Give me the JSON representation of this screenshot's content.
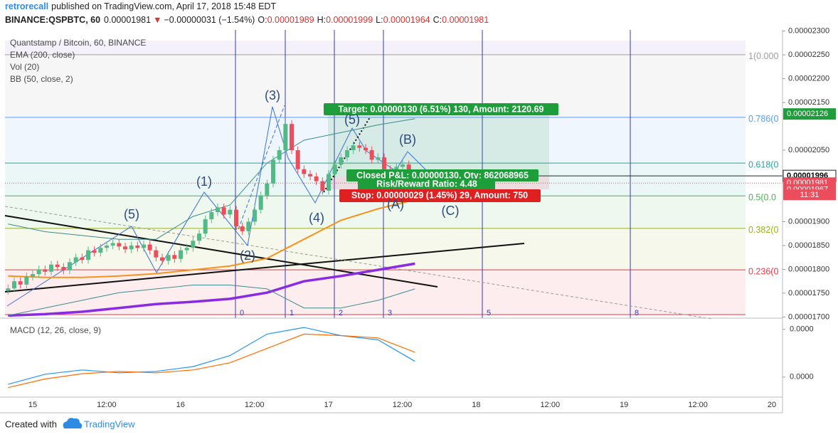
{
  "header": {
    "author": "retrorecall",
    "published": "published on TradingView.com, April 17, 2018 15:48 EDT",
    "symbol": "BINANCE:QSPBTC, 60",
    "last": "0.00001981",
    "arrow": "▼",
    "change": "−0.00000031 (−1.54%)",
    "o_label": "O:",
    "o": "0.00001989",
    "h_label": "H:",
    "h": "0.00001999",
    "l_label": "L:",
    "l": "0.00001964",
    "c_label": "C:",
    "c": "0.00001981"
  },
  "chart_data": [
    {
      "type": "candlestick",
      "title": "Quantstamp / Bitcoin, 60, BINANCE",
      "indicators": [
        "EMA (200, close)",
        "Vol (20)",
        "BB (50, close, 2)"
      ],
      "up_color": "#53b987",
      "down_color": "#eb4d5c",
      "open": [
        1.755e-05,
        1.76e-05,
        1.775e-05,
        1.768e-05,
        1.785e-05,
        1.79e-05,
        1.8e-05,
        1.795e-05,
        1.81e-05,
        1.805e-05,
        1.798e-05,
        1.815e-05,
        1.825e-05,
        1.82e-05,
        1.84e-05,
        1.835e-05,
        1.845e-05,
        1.85e-05,
        1.855e-05,
        1.848e-05,
        1.842e-05,
        1.85e-05,
        1.845e-05,
        1.852e-05,
        1.84e-05,
        1.825e-05,
        1.818e-05,
        1.83e-05,
        1.822e-05,
        1.84e-05,
        1.845e-05,
        1.86e-05,
        1.875e-05,
        1.905e-05,
        1.92e-05,
        1.93e-05,
        1.915e-05,
        1.925e-05,
        1.89e-05,
        1.88e-05,
        1.9e-05,
        1.925e-05,
        1.955e-05,
        1.98e-05,
        2.03e-05,
        2.05e-05,
        2.105e-05,
        2.05e-05,
        2.01e-05,
        2e-05,
        1.995e-05,
        1.985e-05,
        1.965e-05,
        2e-05,
        2.02e-05,
        2.035e-05,
        2.05e-05,
        2.06e-05,
        2.055e-05,
        2.05e-05,
        2.03e-05,
        2.035e-05,
        2.01e-05,
        2.005e-05,
        2.015e-05,
        2.02e-05,
        1.989e-05
      ],
      "high": [
        1.768e-05,
        1.783e-05,
        1.783e-05,
        1.793e-05,
        1.798e-05,
        1.808e-05,
        1.808e-05,
        1.818e-05,
        1.818e-05,
        1.813e-05,
        1.823e-05,
        1.833e-05,
        1.833e-05,
        1.848e-05,
        1.848e-05,
        1.853e-05,
        1.858e-05,
        1.863e-05,
        1.863e-05,
        1.856e-05,
        1.858e-05,
        1.858e-05,
        1.86e-05,
        1.86e-05,
        1.848e-05,
        1.833e-05,
        1.838e-05,
        1.838e-05,
        1.848e-05,
        1.853e-05,
        1.868e-05,
        1.883e-05,
        1.913e-05,
        1.928e-05,
        1.938e-05,
        1.938e-05,
        1.933e-05,
        1.933e-05,
        1.898e-05,
        1.908e-05,
        1.933e-05,
        1.963e-05,
        1.988e-05,
        2.038e-05,
        2.058e-05,
        2.12e-05,
        2.113e-05,
        2.058e-05,
        2.018e-05,
        2.008e-05,
        2.003e-05,
        1.993e-05,
        2.008e-05,
        2.028e-05,
        2.043e-05,
        2.058e-05,
        2.068e-05,
        2.068e-05,
        2.063e-05,
        2.058e-05,
        2.043e-05,
        2.043e-05,
        2.018e-05,
        2.023e-05,
        2.028e-05,
        2.028e-05,
        1.999e-05
      ],
      "low": [
        1.747e-05,
        1.752e-05,
        1.76e-05,
        1.76e-05,
        1.777e-05,
        1.782e-05,
        1.787e-05,
        1.787e-05,
        1.797e-05,
        1.79e-05,
        1.79e-05,
        1.807e-05,
        1.812e-05,
        1.812e-05,
        1.827e-05,
        1.827e-05,
        1.837e-05,
        1.842e-05,
        1.84e-05,
        1.834e-05,
        1.834e-05,
        1.837e-05,
        1.837e-05,
        1.832e-05,
        1.817e-05,
        1.81e-05,
        1.81e-05,
        1.814e-05,
        1.814e-05,
        1.832e-05,
        1.837e-05,
        1.852e-05,
        1.867e-05,
        1.897e-05,
        1.912e-05,
        1.907e-05,
        1.907e-05,
        1.882e-05,
        1.872e-05,
        1.872e-05,
        1.892e-05,
        1.917e-05,
        1.947e-05,
        1.972e-05,
        2.022e-05,
        2.042e-05,
        2.042e-05,
        2.002e-05,
        1.992e-05,
        1.987e-05,
        1.977e-05,
        1.957e-05,
        1.957e-05,
        1.992e-05,
        2.012e-05,
        2.027e-05,
        2.042e-05,
        2.047e-05,
        2.042e-05,
        2.022e-05,
        2.022e-05,
        2.002e-05,
        1.997e-05,
        1.997e-05,
        2.007e-05,
        1.981e-05,
        1.964e-05
      ],
      "close": [
        1.76e-05,
        1.775e-05,
        1.768e-05,
        1.785e-05,
        1.79e-05,
        1.8e-05,
        1.795e-05,
        1.81e-05,
        1.805e-05,
        1.798e-05,
        1.815e-05,
        1.825e-05,
        1.82e-05,
        1.84e-05,
        1.835e-05,
        1.845e-05,
        1.85e-05,
        1.855e-05,
        1.848e-05,
        1.842e-05,
        1.85e-05,
        1.845e-05,
        1.852e-05,
        1.84e-05,
        1.825e-05,
        1.818e-05,
        1.83e-05,
        1.822e-05,
        1.84e-05,
        1.845e-05,
        1.86e-05,
        1.875e-05,
        1.905e-05,
        1.92e-05,
        1.93e-05,
        1.915e-05,
        1.925e-05,
        1.89e-05,
        1.88e-05,
        1.9e-05,
        1.925e-05,
        1.955e-05,
        1.98e-05,
        2.03e-05,
        2.05e-05,
        2.105e-05,
        2.05e-05,
        2.01e-05,
        2e-05,
        1.995e-05,
        1.985e-05,
        1.965e-05,
        2e-05,
        2.02e-05,
        2.035e-05,
        2.05e-05,
        2.06e-05,
        2.055e-05,
        2.05e-05,
        2.03e-05,
        2.035e-05,
        2.01e-05,
        2.005e-05,
        2.015e-05,
        2.02e-05,
        1.989e-05,
        1.981e-05
      ],
      "lines": [
        {
          "color": "#8a2be2",
          "width": 3.5,
          "values": [
            1.703e-05,
            1.706e-05,
            1.711e-05,
            1.719e-05,
            1.727e-05,
            1.732e-05,
            1.738e-05,
            1.751e-05,
            1.775e-05,
            1.786e-05,
            1.799e-05,
            1.812e-05
          ]
        },
        {
          "color": "#f7931a",
          "width": 2,
          "values": [
            1.786e-05,
            1.783e-05,
            1.783e-05,
            1.786e-05,
            1.791e-05,
            1.799e-05,
            1.807e-05,
            1.823e-05,
            1.863e-05,
            1.903e-05,
            1.927e-05,
            1.946e-05
          ]
        },
        {
          "color": "#3d8c8c",
          "width": 1,
          "values": [
            1.895e-05,
            1.879e-05,
            1.871e-05,
            1.863e-05,
            1.863e-05,
            1.911e-05,
            1.935e-05,
            2.023e-05,
            2.071e-05,
            2.087e-05,
            2.103e-05,
            2.116e-05
          ]
        },
        {
          "color": "#3d8c8c",
          "width": 1,
          "values": [
            1.703e-05,
            1.719e-05,
            1.735e-05,
            1.751e-05,
            1.759e-05,
            1.767e-05,
            1.767e-05,
            1.759e-05,
            1.719e-05,
            1.719e-05,
            1.735e-05,
            1.759e-05
          ]
        }
      ],
      "fib_levels": [
        {
          "label": "1(0.000",
          "value": 2.2504e-05,
          "color": "#9e9e9e"
        },
        {
          "label": "0.786(0",
          "value": 2.119e-05,
          "color": "#5b9cf6"
        },
        {
          "label": "0.618(0",
          "value": 2.023e-05,
          "color": "#26a69a"
        },
        {
          "label": "0.5(0.0",
          "value": 1.954e-05,
          "color": "#4caf50"
        },
        {
          "label": "0.382(0",
          "value": 1.886e-05,
          "color": "#9bb31f"
        },
        {
          "label": "0.236(0",
          "value": 1.799e-05,
          "color": "#f23645"
        }
      ],
      "fib_time_labels": [
        "0",
        "1",
        "2",
        "3",
        "5",
        "8"
      ],
      "wave_labels": [
        "(5)",
        "(1)",
        "(2)",
        "(3)",
        "(4)",
        "(5)",
        "(A)",
        "(B)",
        "(C)"
      ],
      "position": {
        "target": "Target: 0.00000130 (6.51%) 130, Amount: 2120.69",
        "closed": "Closed P&L: 0.00000130, Qty: 862068965",
        "ratio": "Risk/Reward Ratio: 4.48",
        "stop": "Stop: 0.00000029 (1.45%) 29, Amount: 750"
      },
      "price_markers": [
        {
          "value": 2.126e-05,
          "label": "0.00002126",
          "color": "#1e9e3a"
        },
        {
          "value": 1.996e-05,
          "label": "0.00001996",
          "color": "#ffffff"
        },
        {
          "value": 1.981e-05,
          "label": "0.00001981",
          "color": "#eb4d5c"
        },
        {
          "value": 1.967e-05,
          "label": "0.00001967",
          "color": "#eb4d5c"
        }
      ],
      "countdown": "11:31",
      "ylim": [
        1.6976e-05,
        2.3024e-05
      ],
      "yticks": [
        {
          "value": 2.3e-05,
          "label": "0.00002300"
        },
        {
          "value": 2.25e-05,
          "label": "0.00002250"
        },
        {
          "value": 2.2e-05,
          "label": "0.00002200"
        },
        {
          "value": 2.15e-05,
          "label": "0.00002150"
        },
        {
          "value": 2.05e-05,
          "label": "0.00002050"
        },
        {
          "value": 1.9e-05,
          "label": "0.00001900"
        },
        {
          "value": 1.85e-05,
          "label": "0.00001850"
        },
        {
          "value": 1.8e-05,
          "label": "0.00001800"
        },
        {
          "value": 1.75e-05,
          "label": "0.00001750"
        },
        {
          "value": 1.7e-05,
          "label": "0.00001700"
        }
      ],
      "x_tick_labels": [
        "15",
        "12:00",
        "16",
        "12:00",
        "17",
        "12:00",
        "18",
        "12:00",
        "19",
        "12:00",
        "20"
      ]
    },
    {
      "type": "line",
      "title": "MACD (12, 26, close, 9)",
      "series": [
        {
          "color": "#2196f3",
          "values": [
            -1.5e-08,
            6e-09,
            1.5e-08,
            9e-09,
            1.2e-08,
            2.2e-08,
            4.5e-08,
            9e-08,
            1.04e-07,
            8.7e-08,
            7.8e-08,
            3.3e-08
          ]
        },
        {
          "color": "#ff6d00",
          "values": [
            -2.2e-08,
            -4e-09,
            7e-09,
            1.2e-08,
            9e-09,
            1.5e-08,
            3e-08,
            6e-08,
            9e-08,
            8.7e-08,
            8.2e-08,
            5.2e-08
          ]
        }
      ],
      "ylim": [
        -4.2e-08,
        1.16e-07
      ],
      "yticks": [
        {
          "value": 1e-07,
          "label": "0.0000"
        },
        {
          "value": 0,
          "label": "0.0000"
        }
      ]
    }
  ],
  "footer": {
    "created": "Created with",
    "brand": "TradingView"
  }
}
